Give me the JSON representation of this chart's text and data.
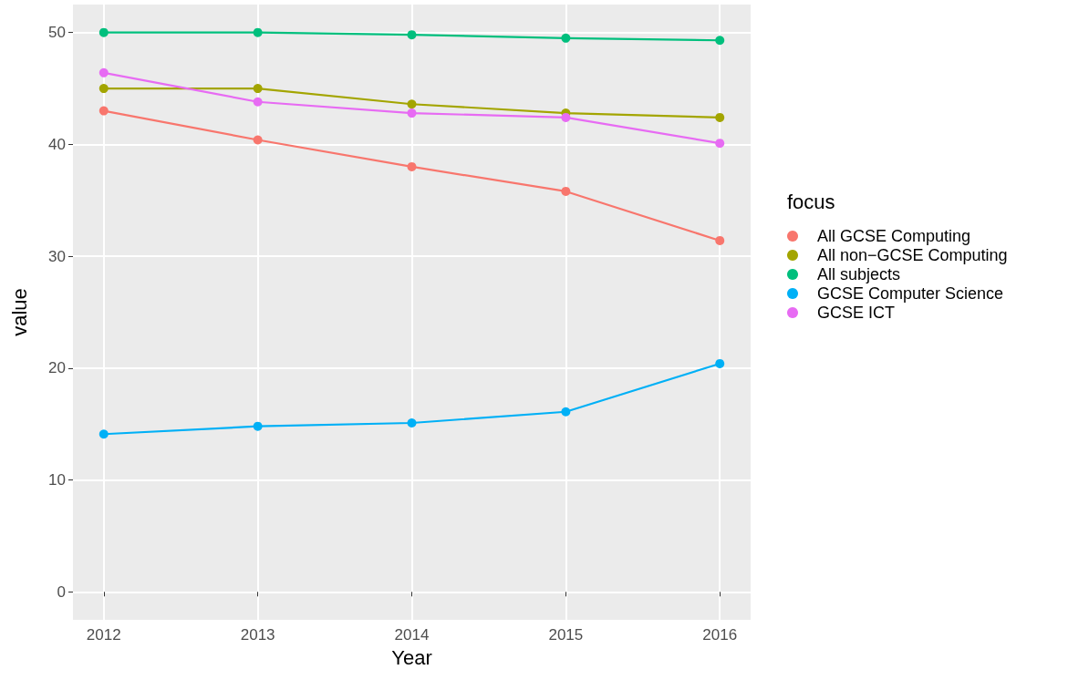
{
  "chart_data": {
    "type": "line",
    "xlabel": "Year",
    "ylabel": "value",
    "legend_title": "focus",
    "x": [
      2012,
      2013,
      2014,
      2015,
      2016
    ],
    "series": [
      {
        "name": "All GCSE Computing",
        "color": "#f8766d",
        "values": [
          43.0,
          40.4,
          38.0,
          35.8,
          31.4
        ]
      },
      {
        "name": "All non−GCSE Computing",
        "color": "#a3a500",
        "values": [
          45.0,
          45.0,
          43.6,
          42.8,
          42.4
        ]
      },
      {
        "name": "All subjects",
        "color": "#00bf7d",
        "values": [
          50.0,
          50.0,
          49.8,
          49.5,
          49.3
        ]
      },
      {
        "name": "GCSE Computer Science",
        "color": "#00b0f6",
        "values": [
          14.1,
          14.8,
          15.1,
          16.1,
          20.4
        ]
      },
      {
        "name": "GCSE ICT",
        "color": "#e76bf3",
        "values": [
          46.4,
          43.8,
          42.8,
          42.4,
          40.1
        ]
      }
    ],
    "xlim": [
      2011.8,
      2016.2
    ],
    "xticks": [
      2012,
      2013,
      2014,
      2015,
      2016
    ],
    "ylim": [
      -2.5,
      52.5
    ],
    "yticks": [
      0,
      10,
      20,
      30,
      40,
      50
    ],
    "grid": true,
    "legend": "right",
    "marker": "circle",
    "line_style": "solid"
  }
}
